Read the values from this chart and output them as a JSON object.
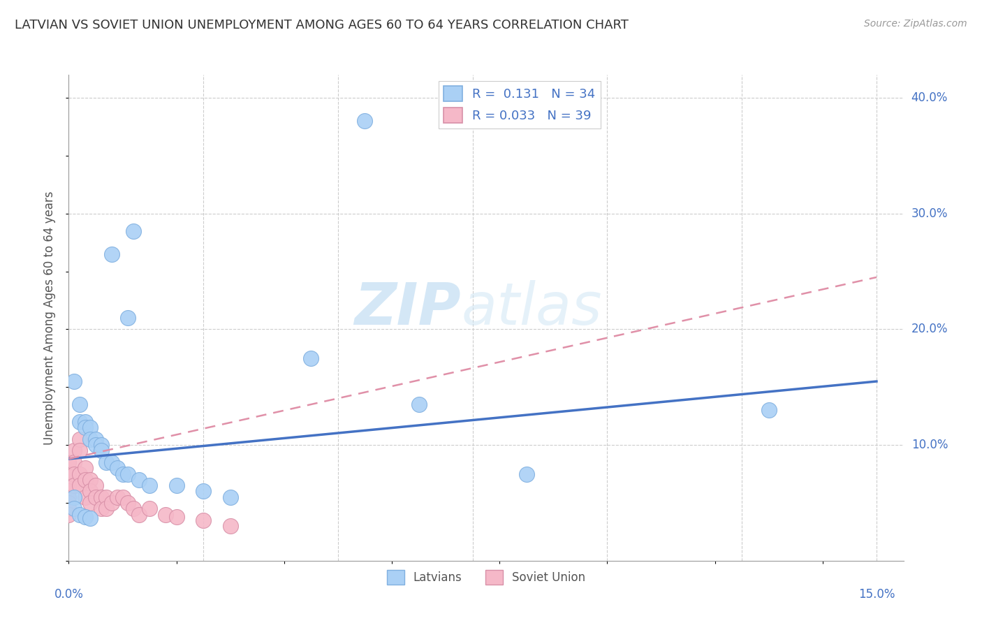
{
  "title": "LATVIAN VS SOVIET UNION UNEMPLOYMENT AMONG AGES 60 TO 64 YEARS CORRELATION CHART",
  "source": "Source: ZipAtlas.com",
  "ylabel": "Unemployment Among Ages 60 to 64 years",
  "ylim": [
    0.0,
    0.42
  ],
  "xlim": [
    0.0,
    0.155
  ],
  "latvian_color": "#aad0f5",
  "soviet_color": "#f5b8c8",
  "latvian_line_color": "#4472c4",
  "soviet_line_color": "#e8a0b0",
  "background_color": "#ffffff",
  "watermark_zip": "ZIP",
  "watermark_atlas": "atlas",
  "latvian_x": [
    0.012,
    0.008,
    0.011,
    0.045,
    0.001,
    0.002,
    0.002,
    0.003,
    0.003,
    0.004,
    0.004,
    0.005,
    0.005,
    0.006,
    0.006,
    0.007,
    0.008,
    0.009,
    0.01,
    0.011,
    0.013,
    0.015,
    0.02,
    0.025,
    0.03,
    0.055,
    0.065,
    0.085,
    0.13,
    0.001,
    0.001,
    0.002,
    0.003,
    0.004
  ],
  "latvian_y": [
    0.285,
    0.265,
    0.21,
    0.175,
    0.155,
    0.135,
    0.12,
    0.12,
    0.115,
    0.115,
    0.105,
    0.105,
    0.1,
    0.1,
    0.095,
    0.085,
    0.085,
    0.08,
    0.075,
    0.075,
    0.07,
    0.065,
    0.065,
    0.06,
    0.055,
    0.38,
    0.135,
    0.075,
    0.13,
    0.055,
    0.045,
    0.04,
    0.038,
    0.037
  ],
  "soviet_x": [
    0.0,
    0.0,
    0.0,
    0.0,
    0.0,
    0.0,
    0.0,
    0.0,
    0.001,
    0.001,
    0.001,
    0.001,
    0.002,
    0.002,
    0.002,
    0.002,
    0.003,
    0.003,
    0.003,
    0.004,
    0.004,
    0.004,
    0.005,
    0.005,
    0.006,
    0.006,
    0.007,
    0.007,
    0.008,
    0.009,
    0.01,
    0.011,
    0.012,
    0.013,
    0.015,
    0.018,
    0.02,
    0.025,
    0.03
  ],
  "soviet_y": [
    0.085,
    0.075,
    0.065,
    0.06,
    0.055,
    0.05,
    0.045,
    0.04,
    0.095,
    0.085,
    0.075,
    0.065,
    0.105,
    0.095,
    0.075,
    0.065,
    0.08,
    0.07,
    0.055,
    0.07,
    0.06,
    0.05,
    0.065,
    0.055,
    0.055,
    0.045,
    0.055,
    0.045,
    0.05,
    0.055,
    0.055,
    0.05,
    0.045,
    0.04,
    0.045,
    0.04,
    0.038,
    0.035,
    0.03
  ],
  "lat_line_x0": 0.0,
  "lat_line_y0": 0.088,
  "lat_line_x1": 0.15,
  "lat_line_y1": 0.155,
  "sov_line_x0": 0.0,
  "sov_line_y0": 0.088,
  "sov_line_x1": 0.15,
  "sov_line_y1": 0.245
}
